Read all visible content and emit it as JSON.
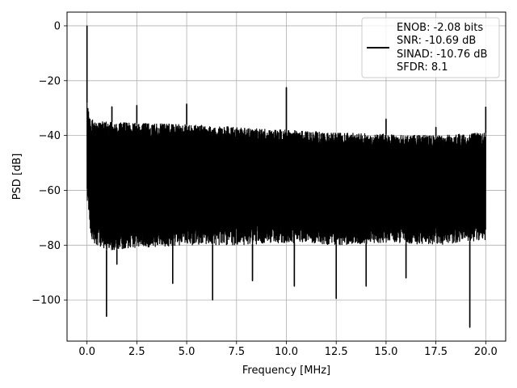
{
  "chart_data": {
    "type": "line",
    "xlabel": "Frequency [MHz]",
    "ylabel": "PSD [dB]",
    "xlim": [
      -1.0,
      21.0
    ],
    "ylim": [
      -115,
      5
    ],
    "x_ticks": [
      0.0,
      2.5,
      5.0,
      7.5,
      10.0,
      12.5,
      15.0,
      17.5,
      20.0
    ],
    "x_tick_labels": [
      "0.0",
      "2.5",
      "5.0",
      "7.5",
      "10.0",
      "12.5",
      "15.0",
      "17.5",
      "20.0"
    ],
    "y_ticks": [
      0,
      -20,
      -40,
      -60,
      -80,
      -100
    ],
    "y_tick_labels": [
      "0",
      "−20",
      "−40",
      "−60",
      "−80",
      "−100"
    ],
    "grid": true,
    "legend_position": "top-right",
    "legend": [
      "ENOB: -2.08 bits",
      "SNR: -10.69 dB",
      "SINAD: -10.76 dB",
      "SFDR: 8.1"
    ],
    "line_color": "#000000",
    "series": [
      {
        "envelope": {
          "x": [
            0.0,
            0.2,
            0.5,
            1.0,
            2.5,
            5.0,
            7.5,
            10.0,
            12.5,
            15.0,
            17.5,
            20.0
          ],
          "upper": [
            -28,
            -34,
            -35,
            -35,
            -35.5,
            -36,
            -37,
            -38,
            -39,
            -39.5,
            -40,
            -39
          ],
          "lower": [
            -64,
            -78,
            -80,
            -82,
            -81,
            -80,
            -80,
            -79,
            -80,
            -79,
            -80,
            -78
          ]
        },
        "peaks": [
          {
            "x": 0.0,
            "y": 0
          },
          {
            "x": 1.25,
            "y": -29.5
          },
          {
            "x": 2.5,
            "y": -29
          },
          {
            "x": 5.0,
            "y": -28.5
          },
          {
            "x": 10.0,
            "y": -22.5
          },
          {
            "x": 15.0,
            "y": -34
          },
          {
            "x": 17.5,
            "y": -37
          },
          {
            "x": 20.0,
            "y": -29.5
          }
        ],
        "dips": [
          {
            "x": 0.98,
            "y": -106
          },
          {
            "x": 1.5,
            "y": -87
          },
          {
            "x": 4.3,
            "y": -94
          },
          {
            "x": 6.3,
            "y": -100
          },
          {
            "x": 8.3,
            "y": -93
          },
          {
            "x": 10.4,
            "y": -95
          },
          {
            "x": 12.5,
            "y": -99.5
          },
          {
            "x": 14.0,
            "y": -95
          },
          {
            "x": 16.0,
            "y": -92
          },
          {
            "x": 19.2,
            "y": -110
          }
        ]
      }
    ]
  }
}
